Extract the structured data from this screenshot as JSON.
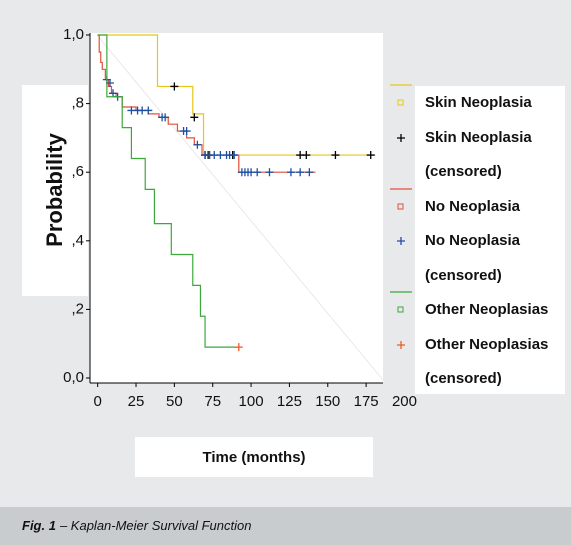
{
  "chart_data": {
    "type": "line",
    "x_label": "Time (months)",
    "y_label": "Probability",
    "xlim": [
      -5,
      186
    ],
    "ylim": [
      0,
      1
    ],
    "xticks": [
      0,
      25,
      50,
      75,
      100,
      125,
      150,
      175,
      200
    ],
    "yticks": [
      {
        "value": 0,
        "label": "0,0"
      },
      {
        "value": 0.2,
        "label": ",2"
      },
      {
        "value": 0.4,
        "label": ",4"
      },
      {
        "value": 0.6,
        "label": ",6"
      },
      {
        "value": 0.8,
        "label": ",8"
      },
      {
        "value": 1,
        "label": "1,0"
      }
    ],
    "legend": "right",
    "series": [
      {
        "name": "Skin Neoplasia",
        "color": "#e6c619",
        "drawstyle": "steps-post",
        "x": [
          0,
          39,
          62,
          69,
          181
        ],
        "values": [
          1,
          0.85,
          0.77,
          0.65,
          0.65
        ]
      },
      {
        "name": "Skin Neoplasia (censored)",
        "color": "#000000",
        "marker": "+",
        "x": [
          50,
          63,
          70,
          72,
          88,
          132,
          136,
          155,
          178
        ],
        "values": [
          0.85,
          0.76,
          0.65,
          0.65,
          0.65,
          0.65,
          0.65,
          0.65,
          0.65
        ]
      },
      {
        "name": "No Neoplasia",
        "color": "#e0503c",
        "drawstyle": "steps-post",
        "x": [
          0,
          1,
          2,
          3,
          5,
          7,
          9,
          12,
          16,
          25,
          33,
          40,
          46,
          52,
          58,
          63,
          68,
          92,
          142
        ],
        "values": [
          1,
          0.95,
          0.92,
          0.9,
          0.87,
          0.85,
          0.83,
          0.82,
          0.79,
          0.78,
          0.77,
          0.76,
          0.74,
          0.72,
          0.7,
          0.68,
          0.65,
          0.6,
          0.6
        ]
      },
      {
        "name": "No Neoplasia (censored)",
        "color": "#1f4fa0",
        "marker": "+",
        "x": [
          6,
          8,
          10,
          13,
          22,
          26,
          29,
          33,
          42,
          44,
          56,
          58,
          65,
          70,
          73,
          76,
          80,
          84,
          86,
          89,
          94,
          96,
          98,
          100,
          104,
          112,
          126,
          132,
          138
        ],
        "values": [
          0.87,
          0.86,
          0.83,
          0.82,
          0.78,
          0.78,
          0.78,
          0.78,
          0.76,
          0.76,
          0.72,
          0.72,
          0.68,
          0.65,
          0.65,
          0.65,
          0.65,
          0.65,
          0.65,
          0.65,
          0.6,
          0.6,
          0.6,
          0.6,
          0.6,
          0.6,
          0.6,
          0.6,
          0.6
        ]
      },
      {
        "name": "Other Neoplasias",
        "color": "#3ca83c",
        "drawstyle": "steps-post",
        "x": [
          0,
          6,
          16,
          22,
          31,
          37,
          48,
          62,
          67,
          70,
          92
        ],
        "values": [
          1,
          0.82,
          0.73,
          0.64,
          0.55,
          0.45,
          0.36,
          0.27,
          0.18,
          0.09,
          0.09
        ]
      },
      {
        "name": "Other Neoplasias (censored)",
        "color": "#f05a28",
        "marker": "+",
        "x": [
          92
        ],
        "values": [
          0.09
        ]
      }
    ]
  },
  "figure_caption": {
    "label": "Fig. 1",
    "text": "– Kaplan-Meier Survival Function"
  }
}
